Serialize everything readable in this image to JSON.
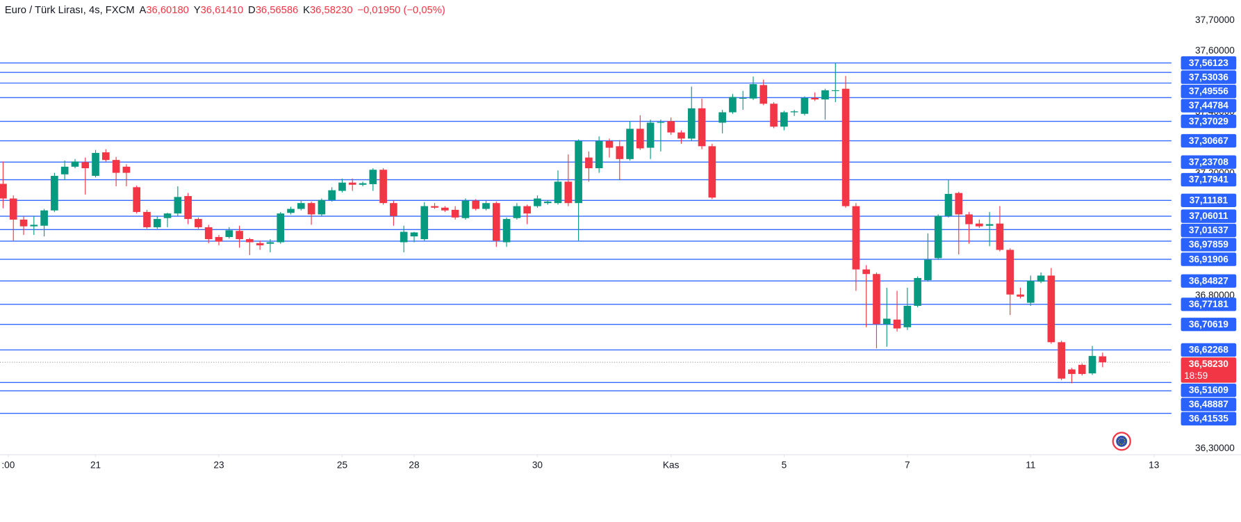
{
  "chart_data": {
    "type": "candlestick",
    "header": {
      "symbol": "Euro / Türk Lirası, 4s, FXCM",
      "ohlc": [
        {
          "key": "A",
          "value": "36,60180"
        },
        {
          "key": "Y",
          "value": "36,61410"
        },
        {
          "key": "D",
          "value": "36,56586"
        },
        {
          "key": "K",
          "value": "36,58230"
        }
      ],
      "change": "−0,01950 (−0,05%)"
    },
    "up_color": "#089981",
    "down_color": "#f23645",
    "level_color": "#2962ff",
    "open": [
      37.166,
      37.118,
      37.049,
      37.027,
      37.029,
      37.079,
      37.197,
      37.222,
      37.237,
      37.192,
      37.269,
      37.244,
      37.222,
      37.155,
      37.074,
      37.024,
      37.054,
      37.069,
      37.126,
      37.051,
      37.024,
      36.992,
      36.992,
      37.012,
      36.985,
      36.972,
      36.97,
      36.975,
      37.071,
      37.084,
      37.103,
      37.066,
      37.113,
      37.143,
      37.17,
      37.163,
      37.165,
      37.212,
      37.103,
      36.975,
      36.994,
      36.985,
      37.093,
      37.088,
      37.081,
      37.054,
      37.111,
      37.084,
      37.103,
      36.975,
      37.054,
      37.093,
      37.093,
      37.103,
      37.103,
      37.173,
      37.103,
      37.252,
      37.217,
      37.306,
      37.289,
      37.247,
      37.346,
      37.284,
      37.366,
      37.371,
      37.334,
      37.314,
      37.413,
      37.289,
      37.366,
      37.4,
      37.445,
      37.445,
      37.489,
      37.428,
      37.353,
      37.4,
      37.395,
      37.447,
      37.442,
      37.47,
      37.477,
      37.093,
      36.886,
      36.871,
      36.707,
      36.722,
      36.697,
      36.767,
      36.851,
      36.923,
      37.061,
      37.136,
      37.066,
      37.036,
      37.029,
      37.036,
      36.95,
      36.804,
      36.777,
      36.846,
      36.866,
      36.648,
      36.559,
      36.574,
      36.546,
      36.6018
    ],
    "high": [
      37.239,
      37.128,
      37.059,
      37.061,
      37.084,
      37.202,
      37.242,
      37.247,
      37.252,
      37.277,
      37.279,
      37.254,
      37.23,
      37.16,
      37.081,
      37.059,
      37.071,
      37.158,
      37.136,
      37.056,
      37.032,
      36.999,
      37.024,
      37.029,
      36.989,
      36.98,
      36.985,
      37.074,
      37.091,
      37.113,
      37.108,
      37.118,
      37.155,
      37.183,
      37.183,
      37.173,
      37.217,
      37.217,
      37.111,
      37.029,
      37.009,
      37.106,
      37.103,
      37.093,
      37.093,
      37.118,
      37.116,
      37.111,
      37.108,
      37.056,
      37.103,
      37.098,
      37.128,
      37.113,
      37.21,
      37.262,
      37.311,
      37.272,
      37.321,
      37.314,
      37.309,
      37.371,
      37.39,
      37.376,
      37.376,
      37.383,
      37.341,
      37.484,
      37.445,
      37.297,
      37.408,
      37.46,
      37.47,
      37.517,
      37.507,
      37.433,
      37.405,
      37.408,
      37.452,
      37.465,
      37.477,
      37.561,
      37.519,
      37.103,
      36.9,
      36.876,
      36.826,
      36.816,
      36.826,
      36.863,
      37.004,
      37.066,
      37.178,
      37.14,
      37.074,
      37.049,
      37.074,
      37.093,
      36.955,
      36.826,
      36.866,
      36.876,
      36.891,
      36.653,
      36.564,
      36.579,
      36.636,
      36.6141
    ],
    "low": [
      37.086,
      36.98,
      36.999,
      36.999,
      36.994,
      37.074,
      37.178,
      37.217,
      37.131,
      37.187,
      37.239,
      37.158,
      37.158,
      37.069,
      37.019,
      37.019,
      37.024,
      37.061,
      37.034,
      37.019,
      36.972,
      36.965,
      36.987,
      36.957,
      36.933,
      36.95,
      36.942,
      36.97,
      37.066,
      37.079,
      37.032,
      37.061,
      37.108,
      37.138,
      37.143,
      37.158,
      37.143,
      37.098,
      37.029,
      36.942,
      36.975,
      36.98,
      37.084,
      37.074,
      37.049,
      37.049,
      37.079,
      37.079,
      36.96,
      36.96,
      37.049,
      37.034,
      37.088,
      37.098,
      37.098,
      37.093,
      36.98,
      37.173,
      37.202,
      37.252,
      37.178,
      37.242,
      37.277,
      37.247,
      37.272,
      37.326,
      37.297,
      37.306,
      37.279,
      37.116,
      37.331,
      37.395,
      37.408,
      37.44,
      37.423,
      37.348,
      37.341,
      37.388,
      37.39,
      37.437,
      37.376,
      37.433,
      37.088,
      36.816,
      36.697,
      36.628,
      36.633,
      36.683,
      36.688,
      36.762,
      36.846,
      36.918,
      37.056,
      36.935,
      36.97,
      37.022,
      36.962,
      36.945,
      36.737,
      36.791,
      36.767,
      36.841,
      36.643,
      36.524,
      36.514,
      36.539,
      36.541,
      36.5659
    ],
    "close": [
      37.118,
      37.049,
      37.027,
      37.032,
      37.079,
      37.192,
      37.222,
      37.239,
      37.217,
      37.267,
      37.244,
      37.202,
      37.202,
      37.074,
      37.024,
      37.051,
      37.069,
      37.123,
      37.051,
      37.024,
      36.985,
      36.977,
      37.014,
      36.985,
      36.975,
      36.965,
      36.975,
      37.069,
      37.084,
      37.103,
      37.066,
      37.113,
      37.145,
      37.17,
      37.163,
      37.168,
      37.212,
      37.103,
      37.061,
      37.009,
      37.007,
      37.093,
      37.088,
      37.079,
      37.056,
      37.111,
      37.084,
      37.103,
      36.98,
      37.051,
      37.093,
      37.069,
      37.118,
      37.108,
      37.173,
      37.103,
      37.306,
      37.217,
      37.306,
      37.284,
      37.247,
      37.346,
      37.282,
      37.366,
      37.368,
      37.334,
      37.314,
      37.413,
      37.289,
      37.121,
      37.4,
      37.45,
      37.447,
      37.492,
      37.428,
      37.353,
      37.4,
      37.403,
      37.447,
      37.442,
      37.472,
      37.472,
      37.093,
      36.886,
      36.871,
      36.707,
      36.725,
      36.693,
      36.767,
      36.858,
      36.918,
      37.061,
      37.133,
      37.066,
      37.034,
      37.027,
      37.034,
      36.95,
      36.804,
      36.797,
      36.849,
      36.866,
      36.648,
      36.529,
      36.544,
      36.544,
      36.603,
      36.5823
    ],
    "xlim": [
      -0.3,
      113.7
    ],
    "xticks": [
      {
        "value": 0.5,
        "label": ":00"
      },
      {
        "value": 9,
        "label": "21"
      },
      {
        "value": 21,
        "label": "23"
      },
      {
        "value": 33,
        "label": "25"
      },
      {
        "value": 40,
        "label": "28"
      },
      {
        "value": 52,
        "label": "30"
      },
      {
        "value": 65,
        "label": "Kas"
      },
      {
        "value": 76,
        "label": "5"
      },
      {
        "value": 88,
        "label": "7"
      },
      {
        "value": 100,
        "label": "11"
      },
      {
        "value": 112,
        "label": "13"
      }
    ],
    "ylim": [
      36.28,
      37.767
    ],
    "yticks": [
      {
        "value": 37.7,
        "label": "37,70000"
      },
      {
        "value": 37.6,
        "label": "37,60000"
      },
      {
        "value": 37.4,
        "label": "37,40000"
      },
      {
        "value": 37.2,
        "label": "37,20000"
      },
      {
        "value": 36.8,
        "label": "36,80000"
      },
      {
        "value": 36.3,
        "label": "36,30000"
      }
    ],
    "levels": [
      {
        "value": 37.56123,
        "label": "37,56123"
      },
      {
        "value": 37.53036,
        "label": "37,53036"
      },
      {
        "value": 37.49556,
        "label": "37,49556"
      },
      {
        "value": 37.44784,
        "label": "37,44784"
      },
      {
        "value": 37.37029,
        "label": "37,37029"
      },
      {
        "value": 37.30667,
        "label": "37,30667"
      },
      {
        "value": 37.23708,
        "label": "37,23708"
      },
      {
        "value": 37.17941,
        "label": "37,17941"
      },
      {
        "value": 37.11181,
        "label": "37,11181"
      },
      {
        "value": 37.06011,
        "label": "37,06011"
      },
      {
        "value": 37.01637,
        "label": "37,01637"
      },
      {
        "value": 36.97859,
        "label": "36,97859"
      },
      {
        "value": 36.91906,
        "label": "36,91906"
      },
      {
        "value": 36.84827,
        "label": "36,84827"
      },
      {
        "value": 36.77181,
        "label": "36,77181"
      },
      {
        "value": 36.70619,
        "label": "36,70619"
      },
      {
        "value": 36.62268,
        "label": "36,62268"
      },
      {
        "value": 36.51609,
        "label": "36,51609"
      },
      {
        "value": 36.48887,
        "label": "36,48887"
      },
      {
        "value": 36.41535,
        "label": "36,41535"
      }
    ],
    "last_price": {
      "value": 36.5823,
      "label": "36,58230"
    },
    "countdown": "18:59"
  }
}
